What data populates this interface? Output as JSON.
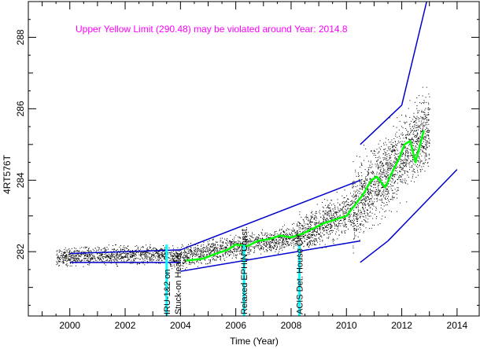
{
  "chart_data": {
    "type": "scatter",
    "xlabel": "Time (Year)",
    "ylabel": "4RT576T",
    "xlim": [
      1998.5,
      2014.8
    ],
    "ylim": [
      280.2,
      289.0
    ],
    "x_ticks": [
      "2000",
      "2002",
      "2004",
      "2006",
      "2008",
      "2010",
      "2012",
      "2014"
    ],
    "y_ticks": [
      "282",
      "284",
      "286",
      "288"
    ],
    "grid": false,
    "annotation": "Upper Yellow  Limit (290.48) may be violated around Year: 2014.8",
    "events": [
      {
        "label": "IRU-1&2 on",
        "x": 2003.5
      },
      {
        "label": "Stuck-on Heater",
        "x": 2003.9
      },
      {
        "label": "Relaxed EPHIN Const.",
        "x": 2006.3
      },
      {
        "label": "ACIS Det. House Off",
        "x": 2008.3
      }
    ],
    "scatter_segments": [
      {
        "x": [
          1999.5,
          2003.6
        ],
        "y_center": [
          281.85,
          281.95
        ],
        "spread": 0.35
      },
      {
        "x": [
          2003.6,
          2008.2
        ],
        "y_center": [
          281.8,
          282.45
        ],
        "spread": 0.45
      },
      {
        "x": [
          2008.2,
          2010.2
        ],
        "y_center": [
          282.4,
          283.2
        ],
        "spread": 0.8
      },
      {
        "x": [
          2010.2,
          2013.0
        ],
        "y_center": [
          283.2,
          285.5
        ],
        "spread": 1.5
      }
    ],
    "trend_line": {
      "color": "#00ff00",
      "x": [
        2004.2,
        2004.8,
        2005.3,
        2005.7,
        2006.0,
        2006.4,
        2006.8,
        2007.2,
        2007.6,
        2008.0,
        2008.4,
        2008.8,
        2009.2,
        2009.6,
        2010.0,
        2010.3,
        2010.6,
        2010.9,
        2011.1,
        2011.4,
        2011.7,
        2011.9,
        2012.1,
        2012.3,
        2012.5,
        2012.8
      ],
      "y": [
        281.75,
        281.8,
        281.95,
        282.05,
        282.2,
        282.15,
        282.3,
        282.35,
        282.45,
        282.4,
        282.5,
        282.65,
        282.8,
        282.9,
        283.0,
        283.3,
        283.6,
        284.0,
        284.1,
        283.8,
        284.3,
        284.6,
        285.0,
        285.1,
        284.5,
        285.4
      ]
    },
    "envelope_lines": {
      "color": "#0000cc",
      "lines": [
        {
          "x": [
            2000.0,
            2004.0
          ],
          "y": [
            281.95,
            282.05
          ]
        },
        {
          "x": [
            2000.0,
            2004.0
          ],
          "y": [
            281.7,
            281.7
          ]
        },
        {
          "x": [
            2004.0,
            2010.5
          ],
          "y": [
            282.05,
            284.0
          ]
        },
        {
          "x": [
            2004.0,
            2010.5
          ],
          "y": [
            281.45,
            282.3
          ]
        },
        {
          "x": [
            2010.5,
            2012.0
          ],
          "y": [
            285.0,
            286.1
          ]
        },
        {
          "x": [
            2012.0,
            2012.9
          ],
          "y": [
            286.1,
            289.0
          ]
        },
        {
          "x": [
            2010.5,
            2011.5
          ],
          "y": [
            281.7,
            282.3
          ]
        },
        {
          "x": [
            2011.5,
            2014.0
          ],
          "y": [
            282.3,
            284.3
          ]
        }
      ]
    },
    "colors": {
      "annotation": "#ff00ff",
      "event_marker": "#00ffff",
      "scatter": "#000000"
    }
  }
}
